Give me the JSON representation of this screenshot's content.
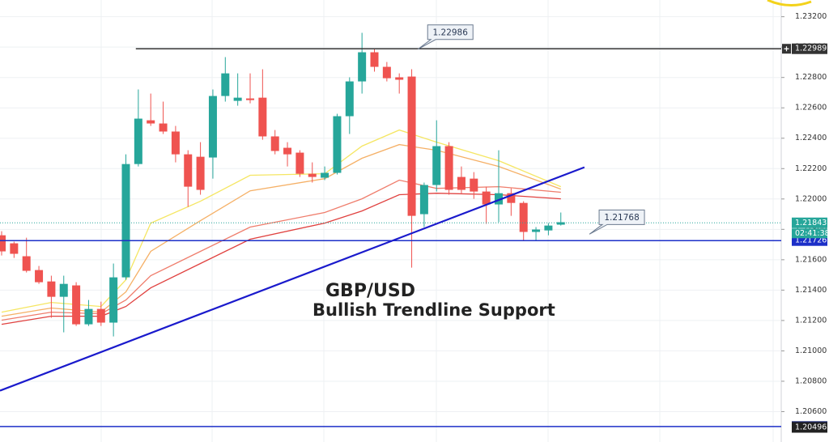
{
  "chart_data": {
    "type": "candlestick",
    "title": "GBP/USD",
    "subtitle": "Bullish Trendline Support",
    "ylim": [
      1.204,
      1.2331
    ],
    "yticks": [
      {
        "value": 1.206,
        "label": "1.20600"
      },
      {
        "value": 1.208,
        "label": "1.20800"
      },
      {
        "value": 1.21,
        "label": "1.21000"
      },
      {
        "value": 1.212,
        "label": "1.21200"
      },
      {
        "value": 1.214,
        "label": "1.21400"
      },
      {
        "value": 1.216,
        "label": "1.21600"
      },
      {
        "value": 1.218,
        "label": "1.21800"
      },
      {
        "value": 1.22,
        "label": "1.22000"
      },
      {
        "value": 1.222,
        "label": "1.22200"
      },
      {
        "value": 1.224,
        "label": "1.22400"
      },
      {
        "value": 1.226,
        "label": "1.22600"
      },
      {
        "value": 1.228,
        "label": "1.22800"
      },
      {
        "value": 1.23,
        "label": "1.23000"
      },
      {
        "value": 1.232,
        "label": "1.23200"
      }
    ],
    "grid": true,
    "up_color": "#26a69a",
    "down_color": "#ef5350",
    "open": [
      1.21761,
      1.21708,
      1.21623,
      1.21532,
      1.21457,
      1.21356,
      1.21431,
      1.21175,
      1.21276,
      1.21186,
      1.21484,
      1.2223,
      1.22518,
      1.22497,
      1.22444,
      1.22294,
      1.22278,
      1.22273,
      1.22678,
      1.22646,
      1.22662,
      1.22667,
      1.22412,
      1.22337,
      1.22305,
      1.22166,
      1.2214,
      1.22172,
      1.22545,
      1.22774,
      1.22966,
      1.2287,
      1.22801,
      1.22806,
      1.219,
      1.22092,
      1.22348,
      1.22145,
      1.22134,
      1.22049,
      1.21964,
      1.22038,
      1.21974,
      1.21783,
      1.21793,
      1.21831
    ],
    "high": [
      1.21788,
      1.21719,
      1.21745,
      1.21559,
      1.21495,
      1.21495,
      1.21452,
      1.21335,
      1.21324,
      1.21575,
      1.22294,
      1.22721,
      1.22694,
      1.22641,
      1.22481,
      1.22321,
      1.22374,
      1.22721,
      1.22934,
      1.22827,
      1.22827,
      1.22854,
      1.22454,
      1.22374,
      1.22321,
      1.22241,
      1.22214,
      1.22561,
      1.22801,
      1.23094,
      1.22987,
      1.22902,
      1.22827,
      1.22854,
      1.22108,
      1.22518,
      1.22374,
      1.22214,
      1.22177,
      1.22081,
      1.22321,
      1.2207,
      1.21985,
      1.21815,
      1.21841,
      1.21911
    ],
    "low": [
      1.21628,
      1.21612,
      1.21516,
      1.21441,
      1.21218,
      1.21122,
      1.21164,
      1.21164,
      1.21164,
      1.21095,
      1.21468,
      1.22214,
      1.22481,
      1.22428,
      1.22241,
      1.21948,
      1.22028,
      1.22134,
      1.22641,
      1.22614,
      1.2263,
      1.2239,
      1.22294,
      1.22214,
      1.22145,
      1.22108,
      1.22124,
      1.22161,
      1.22428,
      1.22694,
      1.22838,
      1.22774,
      1.22694,
      1.21548,
      1.21815,
      1.22049,
      1.22028,
      1.22038,
      1.22001,
      1.21836,
      1.21847,
      1.21889,
      1.21729,
      1.21729,
      1.21761,
      1.21825
    ],
    "close": [
      1.21655,
      1.21639,
      1.21527,
      1.21452,
      1.21356,
      1.21441,
      1.21175,
      1.21276,
      1.21186,
      1.21484,
      1.2223,
      1.22529,
      1.22497,
      1.22444,
      1.22294,
      1.22081,
      1.2206,
      1.22678,
      1.22827,
      1.22667,
      1.22651,
      1.22412,
      1.22316,
      1.22294,
      1.22166,
      1.22145,
      1.22172,
      1.22545,
      1.22774,
      1.22966,
      1.2287,
      1.22795,
      1.22785,
      1.21889,
      1.22092,
      1.22348,
      1.2206,
      1.2206,
      1.22049,
      1.21964,
      1.22038,
      1.21974,
      1.21783,
      1.21799,
      1.21825,
      1.21847
    ],
    "moving_averages": [
      {
        "color": "#f5e663",
        "x": [
          0,
          4,
          8,
          10,
          12,
          16,
          20,
          26,
          29,
          32,
          35,
          40,
          45
        ],
        "values": [
          1.21255,
          1.21319,
          1.21292,
          1.21468,
          1.21841,
          1.21985,
          1.22156,
          1.22166,
          1.22348,
          1.22454,
          1.22374,
          1.22252,
          1.22081
        ]
      },
      {
        "color": "#f5b066",
        "x": [
          0,
          4,
          8,
          10,
          12,
          16,
          20,
          26,
          29,
          32,
          35,
          40,
          45
        ],
        "values": [
          1.21228,
          1.21282,
          1.21255,
          1.21388,
          1.21655,
          1.21857,
          1.22054,
          1.22134,
          1.22268,
          1.22358,
          1.22321,
          1.22214,
          1.22065
        ]
      },
      {
        "color": "#ef7d6c",
        "x": [
          0,
          4,
          8,
          10,
          12,
          16,
          20,
          26,
          29,
          32,
          35,
          40,
          45
        ],
        "values": [
          1.21202,
          1.21255,
          1.21244,
          1.21335,
          1.21495,
          1.21655,
          1.21815,
          1.21911,
          1.22001,
          1.22124,
          1.2207,
          1.22081,
          1.22044
        ]
      },
      {
        "color": "#e0413f",
        "x": [
          0,
          4,
          8,
          10,
          12,
          16,
          20,
          26,
          29,
          32,
          35,
          40,
          45
        ],
        "values": [
          1.21175,
          1.21228,
          1.21228,
          1.21292,
          1.21415,
          1.21575,
          1.21735,
          1.21841,
          1.21921,
          1.22028,
          1.22038,
          1.22028,
          1.22001
        ]
      }
    ],
    "trendline": {
      "color": "#1a1acc",
      "x": [
        -0.13,
        46.9
      ],
      "values": [
        1.20738,
        1.22209
      ]
    },
    "hlines": [
      {
        "value": 1.22989,
        "color": "#333333",
        "x_start": 10.8
      },
      {
        "value": 1.21726,
        "color": "#1c2fc8"
      },
      {
        "value": 1.20502,
        "color": "#1c2fc8"
      }
    ],
    "axis_markers": [
      {
        "value": 1.22989,
        "color": "#333333"
      },
      {
        "value": 1.21843,
        "color": "#26a69a"
      },
      {
        "value": 1.21726,
        "color": "#1c2fc8"
      },
      {
        "value": 1.20502,
        "color": "#131f6b"
      },
      {
        "value": 1.20496,
        "color": "#222222"
      }
    ],
    "countdown": "02:41:38",
    "current_price": 1.21843,
    "callouts": [
      {
        "value": 1.22986,
        "x": 33.5
      },
      {
        "value": 1.21768,
        "x": 47.3
      }
    ]
  }
}
